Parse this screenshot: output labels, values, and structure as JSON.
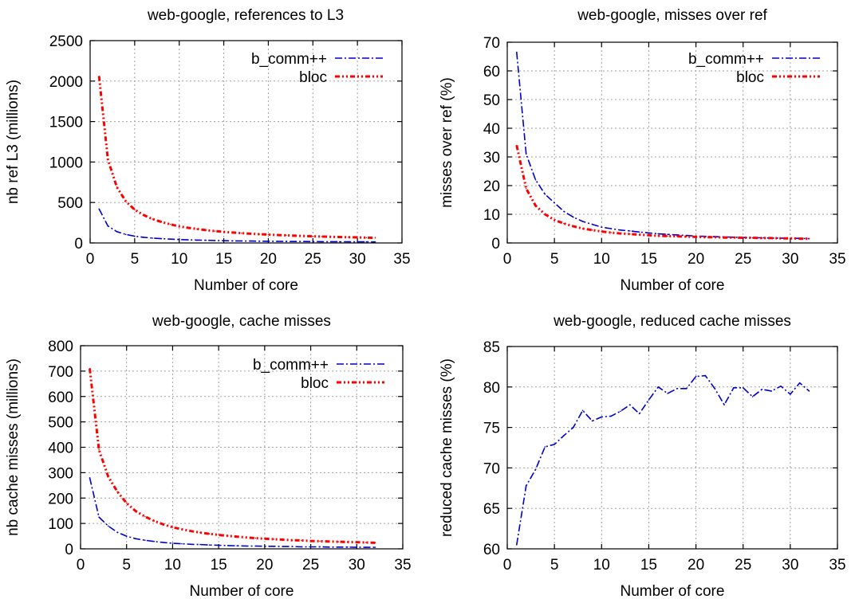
{
  "chart_data": [
    {
      "type": "line",
      "title": "web-google, references to L3",
      "xlabel": "Number of core",
      "ylabel": "nb ref L3 (millions)",
      "xlim": [
        0,
        35
      ],
      "ylim": [
        0,
        2500
      ],
      "xticks": [
        0,
        5,
        10,
        15,
        20,
        25,
        30,
        35
      ],
      "yticks": [
        0,
        500,
        1000,
        1500,
        2000,
        2500
      ],
      "grid": true,
      "legend": "top-right",
      "series": [
        {
          "name": "b_comm++",
          "color": "#0000cc",
          "style": "dash-dot",
          "x": [
            1,
            2,
            3,
            4,
            5,
            6,
            7,
            8,
            9,
            10,
            11,
            12,
            13,
            14,
            15,
            16,
            17,
            18,
            19,
            20,
            21,
            22,
            23,
            24,
            25,
            26,
            27,
            28,
            29,
            30,
            31,
            32
          ],
          "y": [
            420,
            210,
            140,
            105,
            84,
            70,
            60,
            53,
            47,
            42,
            38,
            35,
            33,
            30,
            28,
            26,
            25,
            24,
            22,
            21,
            20,
            19,
            18,
            18,
            17,
            16,
            16,
            15,
            15,
            14,
            14,
            13
          ]
        },
        {
          "name": "bloc",
          "color": "#ff0000",
          "style": "dash-dot-dot",
          "x": [
            1,
            2,
            3,
            4,
            5,
            6,
            7,
            8,
            9,
            10,
            11,
            12,
            13,
            14,
            15,
            16,
            17,
            18,
            19,
            20,
            21,
            22,
            23,
            24,
            25,
            26,
            27,
            28,
            29,
            30,
            31,
            32
          ],
          "y": [
            2060,
            1030,
            690,
            515,
            410,
            345,
            295,
            260,
            230,
            205,
            187,
            172,
            158,
            147,
            137,
            129,
            121,
            114,
            108,
            103,
            98,
            94,
            90,
            86,
            82,
            79,
            76,
            74,
            71,
            69,
            66,
            64
          ]
        }
      ]
    },
    {
      "type": "line",
      "title": "web-google, misses over ref",
      "xlabel": "Number of core",
      "ylabel": "misses over ref (%)",
      "xlim": [
        0,
        35
      ],
      "ylim": [
        0,
        70
      ],
      "xticks": [
        0,
        5,
        10,
        15,
        20,
        25,
        30,
        35
      ],
      "yticks": [
        0,
        10,
        20,
        30,
        40,
        50,
        60,
        70
      ],
      "grid": true,
      "legend": "top-right",
      "series": [
        {
          "name": "b_comm++",
          "color": "#0000cc",
          "style": "dash-dot",
          "x": [
            1,
            2,
            3,
            4,
            5,
            6,
            7,
            8,
            9,
            10,
            11,
            12,
            13,
            14,
            15,
            16,
            17,
            18,
            19,
            20,
            21,
            22,
            23,
            24,
            25,
            26,
            27,
            28,
            29,
            30,
            31,
            32
          ],
          "y": [
            66.5,
            31,
            22,
            17,
            14,
            11,
            9,
            7.5,
            6.5,
            5.5,
            5,
            4.5,
            4.2,
            3.8,
            3.5,
            3.2,
            3,
            2.8,
            2.6,
            2.4,
            2.3,
            2.2,
            2.1,
            2,
            1.9,
            1.8,
            1.8,
            1.7,
            1.7,
            1.6,
            1.6,
            1.5
          ]
        },
        {
          "name": "bloc",
          "color": "#ff0000",
          "style": "dash-dot-dot",
          "x": [
            1,
            2,
            3,
            4,
            5,
            6,
            7,
            8,
            9,
            10,
            11,
            12,
            13,
            14,
            15,
            16,
            17,
            18,
            19,
            20,
            21,
            22,
            23,
            24,
            25,
            26,
            27,
            28,
            29,
            30,
            31,
            32
          ],
          "y": [
            34,
            19,
            13,
            10,
            8,
            6.8,
            5.8,
            5,
            4.5,
            4,
            3.6,
            3.3,
            3.1,
            2.9,
            2.7,
            2.5,
            2.4,
            2.3,
            2.2,
            2.1,
            2,
            2,
            1.9,
            1.9,
            1.8,
            1.8,
            1.7,
            1.7,
            1.6,
            1.6,
            1.5,
            1.5
          ]
        }
      ]
    },
    {
      "type": "line",
      "title": "web-google, cache misses",
      "xlabel": "Number of core",
      "ylabel": "nb cache misses (millions)",
      "xlim": [
        0,
        35
      ],
      "ylim": [
        0,
        800
      ],
      "xticks": [
        0,
        5,
        10,
        15,
        20,
        25,
        30,
        35
      ],
      "yticks": [
        0,
        100,
        200,
        300,
        400,
        500,
        600,
        700,
        800
      ],
      "grid": true,
      "legend": "top-right",
      "series": [
        {
          "name": "b_comm++",
          "color": "#0000cc",
          "style": "dash-dot",
          "x": [
            1,
            2,
            3,
            4,
            5,
            6,
            7,
            8,
            9,
            10,
            11,
            12,
            13,
            14,
            15,
            16,
            17,
            18,
            19,
            20,
            21,
            22,
            23,
            24,
            25,
            26,
            27,
            28,
            29,
            30,
            31,
            32
          ],
          "y": [
            280,
            125,
            90,
            65,
            50,
            40,
            34,
            29,
            25,
            22,
            20,
            18,
            17,
            15,
            14,
            13,
            12,
            11,
            11,
            10,
            10,
            9,
            9,
            8,
            8,
            8,
            7,
            7,
            7,
            6,
            6,
            6
          ]
        },
        {
          "name": "bloc",
          "color": "#ff0000",
          "style": "dash-dot-dot",
          "x": [
            1,
            2,
            3,
            4,
            5,
            6,
            7,
            8,
            9,
            10,
            11,
            12,
            13,
            14,
            15,
            16,
            17,
            18,
            19,
            20,
            21,
            22,
            23,
            24,
            25,
            26,
            27,
            28,
            29,
            30,
            31,
            32
          ],
          "y": [
            710,
            390,
            285,
            225,
            180,
            148,
            127,
            110,
            96,
            85,
            77,
            70,
            64,
            59,
            55,
            51,
            48,
            45,
            42,
            40,
            38,
            36,
            34,
            33,
            31,
            30,
            29,
            28,
            27,
            26,
            25,
            24
          ]
        }
      ]
    },
    {
      "type": "line",
      "title": "web-google, reduced cache misses",
      "xlabel": "Number of core",
      "ylabel": "reduced cache misses (%)",
      "xlim": [
        0,
        35
      ],
      "ylim": [
        60,
        85
      ],
      "xticks": [
        0,
        5,
        10,
        15,
        20,
        25,
        30,
        35
      ],
      "yticks": [
        60,
        65,
        70,
        75,
        80,
        85
      ],
      "grid": true,
      "legend": "",
      "series": [
        {
          "color": "#0000cc",
          "style": "dash-dot",
          "x": [
            1,
            2,
            3,
            4,
            5,
            6,
            7,
            8,
            9,
            10,
            11,
            12,
            13,
            14,
            15,
            16,
            17,
            18,
            19,
            20,
            21,
            22,
            23,
            24,
            25,
            26,
            27,
            28,
            29,
            30,
            31,
            32
          ],
          "y": [
            60.5,
            67.8,
            69.8,
            72.6,
            72.9,
            74,
            75,
            77.1,
            75.8,
            76.3,
            76.4,
            77,
            77.8,
            76.7,
            78.4,
            80,
            79.2,
            79.8,
            79.8,
            81.3,
            81.4,
            79.8,
            77.8,
            79.9,
            79.9,
            78.8,
            79.7,
            79.5,
            80.1,
            79.1,
            80.5,
            79.5
          ]
        }
      ]
    }
  ]
}
